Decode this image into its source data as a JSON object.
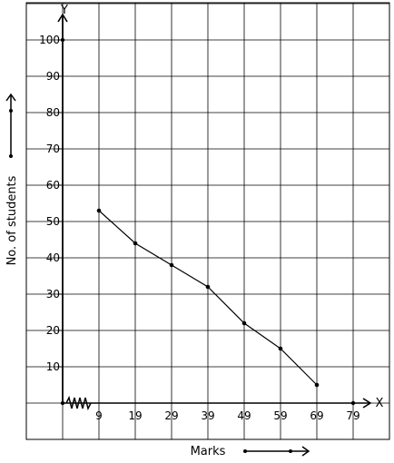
{
  "chart_data": {
    "type": "line",
    "x": [
      9,
      19,
      29,
      39,
      49,
      59,
      69
    ],
    "y": [
      53,
      44,
      38,
      32,
      22,
      15,
      5
    ],
    "x_ticks": [
      "9",
      "19",
      "29",
      "39",
      "49",
      "59",
      "69",
      "79"
    ],
    "y_ticks": [
      "10",
      "20",
      "30",
      "40",
      "50",
      "60",
      "70",
      "80",
      "90",
      "100"
    ],
    "x_axis_letter": "X",
    "y_axis_letter": "Y",
    "xlabel": "Marks",
    "ylabel": "No. of students",
    "xlim": [
      -1,
      79
    ],
    "ylim": [
      0,
      100
    ],
    "grid": true,
    "axis_break": "x",
    "line_color": "#000000",
    "grid_color": "#000000"
  }
}
